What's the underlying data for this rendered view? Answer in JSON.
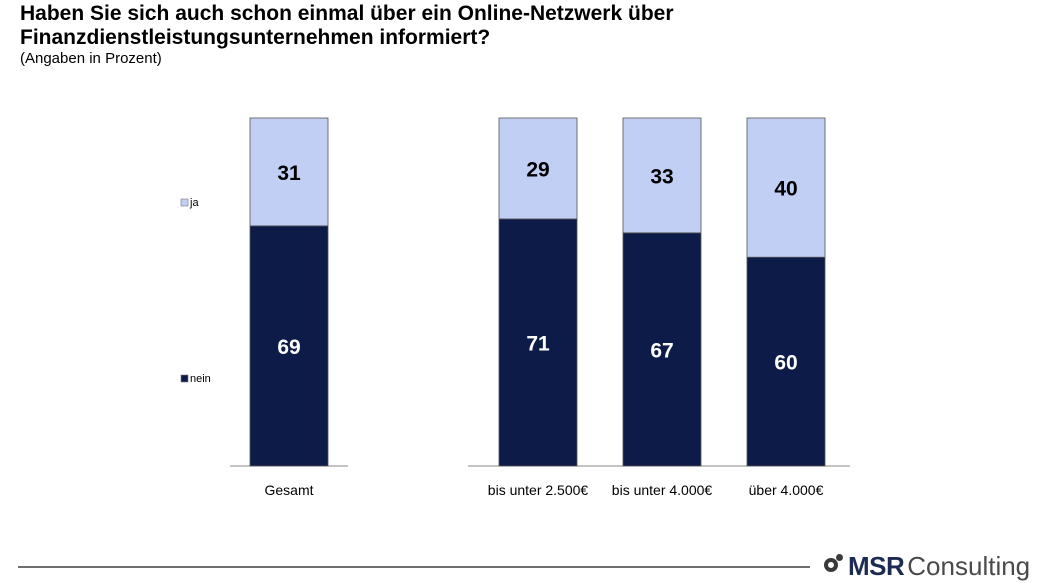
{
  "header": {
    "title": "Haben Sie sich auch schon einmal über ein Online-Netzwerk über Finanzdienstleistungsunternehmen informiert?",
    "subtitle": "(Angaben in Prozent)"
  },
  "logo": {
    "text_strong": "MSR",
    "text_light": "Consulting"
  },
  "colors": {
    "ja": "#c0cff3",
    "nein": "#0d1b48",
    "axis": "#888888",
    "footer_line": "#6f6f6f"
  },
  "chart_data": {
    "type": "bar",
    "stacked": true,
    "categories": [
      "Gesamt",
      "bis unter 2.500€",
      "bis unter 4.000€",
      "über 4.000€"
    ],
    "series": [
      {
        "name": "nein",
        "values": [
          69,
          71,
          67,
          60
        ]
      },
      {
        "name": "ja",
        "values": [
          31,
          29,
          33,
          40
        ]
      }
    ],
    "ylim": [
      0,
      100
    ],
    "legend": [
      "ja",
      "nein"
    ],
    "legend_position": "left",
    "grid": false,
    "xlabel": "",
    "ylabel": ""
  }
}
